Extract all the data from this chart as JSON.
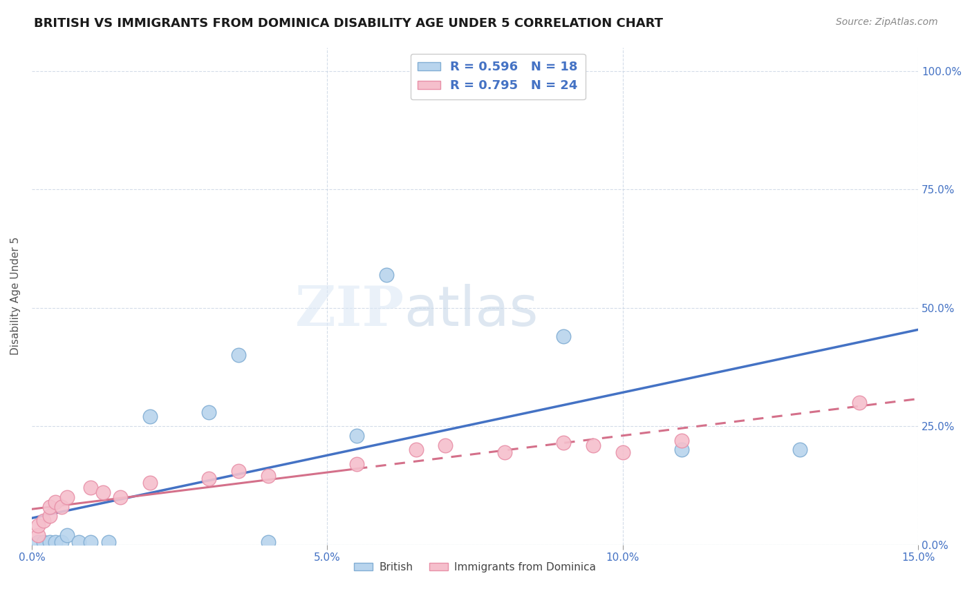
{
  "title": "BRITISH VS IMMIGRANTS FROM DOMINICA DISABILITY AGE UNDER 5 CORRELATION CHART",
  "source": "Source: ZipAtlas.com",
  "ylabel_label": "Disability Age Under 5",
  "watermark_zip": "ZIP",
  "watermark_atlas": "atlas",
  "xlim": [
    0.0,
    0.15
  ],
  "ylim": [
    0.0,
    1.05
  ],
  "xtick_vals": [
    0.0,
    0.05,
    0.1,
    0.15
  ],
  "xtick_labels": [
    "0.0%",
    "5.0%",
    "10.0%",
    "15.0%"
  ],
  "ytick_vals": [
    0.0,
    0.25,
    0.5,
    0.75,
    1.0
  ],
  "ytick_labels": [
    "0.0%",
    "25.0%",
    "50.0%",
    "75.0%",
    "100.0%"
  ],
  "british_color": "#b8d4ed",
  "british_edge_color": "#82aed4",
  "dominica_color": "#f5bfcc",
  "dominica_edge_color": "#e890a8",
  "trend_british_color": "#4472c4",
  "trend_dominica_color": "#d4708a",
  "R_british": 0.596,
  "N_british": 18,
  "R_dominica": 0.795,
  "N_dominica": 24,
  "british_x": [
    0.001,
    0.002,
    0.003,
    0.004,
    0.005,
    0.006,
    0.008,
    0.01,
    0.013,
    0.02,
    0.03,
    0.035,
    0.04,
    0.055,
    0.06,
    0.09,
    0.11,
    0.13
  ],
  "british_y": [
    0.005,
    0.005,
    0.005,
    0.005,
    0.005,
    0.02,
    0.005,
    0.005,
    0.005,
    0.27,
    0.28,
    0.4,
    0.005,
    0.23,
    0.57,
    0.44,
    0.2,
    0.2
  ],
  "dominica_x": [
    0.001,
    0.001,
    0.002,
    0.003,
    0.003,
    0.004,
    0.005,
    0.006,
    0.01,
    0.012,
    0.015,
    0.02,
    0.03,
    0.035,
    0.04,
    0.055,
    0.065,
    0.07,
    0.08,
    0.09,
    0.095,
    0.1,
    0.11,
    0.14
  ],
  "dominica_y": [
    0.02,
    0.04,
    0.05,
    0.06,
    0.08,
    0.09,
    0.08,
    0.1,
    0.12,
    0.11,
    0.1,
    0.13,
    0.14,
    0.155,
    0.145,
    0.17,
    0.2,
    0.21,
    0.195,
    0.215,
    0.21,
    0.195,
    0.22,
    0.3
  ],
  "title_fontsize": 13,
  "axis_fontsize": 11,
  "tick_fontsize": 11,
  "source_fontsize": 10,
  "legend_fontsize": 13
}
